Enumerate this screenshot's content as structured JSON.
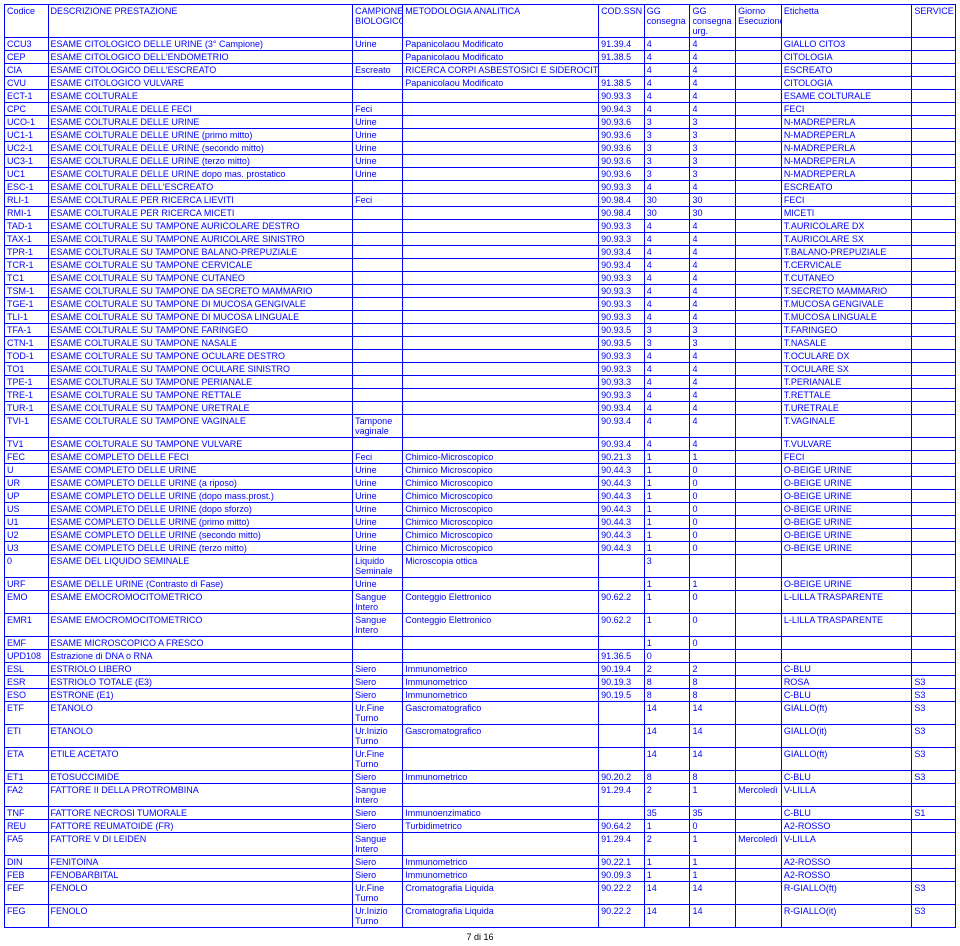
{
  "header": {
    "codice": "Codice",
    "descrizione": "DESCRIZIONE PRESTAZIONE",
    "campione": "CAMPIONE BIOLOGICO",
    "metodologia": "METODOLOGIA ANALITICA",
    "codssn": "COD.SSN",
    "gg_consegna": "GG consegna",
    "gg_consegna_urg": "GG consegna urg.",
    "giorno": "Giorno Esecuzione",
    "etichetta": "Etichetta",
    "service": "SERVICE"
  },
  "rows": [
    {
      "codice": "CCU3",
      "desc": "ESAME CITOLOGICO DELLE URINE (3° Campione)",
      "camp": "Urine",
      "metodo": "Papanicolaou Modificato",
      "cod": "91.39.4",
      "gg1": "4",
      "gg2": "4",
      "giorno": "",
      "etic": "GIALLO CITO3",
      "serv": ""
    },
    {
      "codice": "CEP",
      "desc": "ESAME CITOLOGICO DELL'ENDOMETRIO",
      "camp": "",
      "metodo": "Papanicolaou Modificato",
      "cod": "91.38.5",
      "gg1": "4",
      "gg2": "4",
      "giorno": "",
      "etic": "CITOLOGIA",
      "serv": ""
    },
    {
      "codice": "CIA",
      "desc": "ESAME CITOLOGICO DELL'ESCREATO",
      "camp": "Escreato",
      "metodo": "RICERCA CORPI ASBESTOSICI E SIDEROCITI",
      "cod": "",
      "gg1": "4",
      "gg2": "4",
      "giorno": "",
      "etic": "ESCREATO",
      "serv": ""
    },
    {
      "codice": "CVU",
      "desc": "ESAME CITOLOGICO VULVARE",
      "camp": "",
      "metodo": "Papanicolaou Modificato",
      "cod": "91.38.5",
      "gg1": "4",
      "gg2": "4",
      "giorno": "",
      "etic": "CITOLOGIA",
      "serv": ""
    },
    {
      "codice": "ECT-1",
      "desc": "ESAME COLTURALE",
      "camp": "",
      "metodo": "",
      "cod": "90.93.3",
      "gg1": "4",
      "gg2": "4",
      "giorno": "",
      "etic": "ESAME COLTURALE",
      "serv": ""
    },
    {
      "codice": "CPC",
      "desc": "ESAME COLTURALE DELLE FECI",
      "camp": "Feci",
      "metodo": "",
      "cod": "90.94.3",
      "gg1": "4",
      "gg2": "4",
      "giorno": "",
      "etic": "FECI",
      "serv": ""
    },
    {
      "codice": "UCO-1",
      "desc": "ESAME COLTURALE DELLE URINE",
      "camp": "Urine",
      "metodo": "",
      "cod": "90.93.6",
      "gg1": "3",
      "gg2": "3",
      "giorno": "",
      "etic": "N-MADREPERLA",
      "serv": ""
    },
    {
      "codice": "UC1-1",
      "desc": "ESAME COLTURALE DELLE URINE (primo mitto)",
      "camp": "Urine",
      "metodo": "",
      "cod": "90.93.6",
      "gg1": "3",
      "gg2": "3",
      "giorno": "",
      "etic": "N-MADREPERLA",
      "serv": ""
    },
    {
      "codice": "UC2-1",
      "desc": "ESAME COLTURALE DELLE URINE (secondo mitto)",
      "camp": "Urine",
      "metodo": "",
      "cod": "90.93.6",
      "gg1": "3",
      "gg2": "3",
      "giorno": "",
      "etic": "N-MADREPERLA",
      "serv": ""
    },
    {
      "codice": "UC3-1",
      "desc": "ESAME COLTURALE DELLE URINE (terzo mitto)",
      "camp": "Urine",
      "metodo": "",
      "cod": "90.93.6",
      "gg1": "3",
      "gg2": "3",
      "giorno": "",
      "etic": "N-MADREPERLA",
      "serv": ""
    },
    {
      "codice": "UC1",
      "desc": "ESAME COLTURALE DELLE URINE dopo mas. prostatico",
      "camp": "Urine",
      "metodo": "",
      "cod": "90.93.6",
      "gg1": "3",
      "gg2": "3",
      "giorno": "",
      "etic": "N-MADREPERLA",
      "serv": ""
    },
    {
      "codice": "ESC-1",
      "desc": "ESAME COLTURALE DELL'ESCREATO",
      "camp": "",
      "metodo": "",
      "cod": "90.93.3",
      "gg1": "4",
      "gg2": "4",
      "giorno": "",
      "etic": "ESCREATO",
      "serv": ""
    },
    {
      "codice": "RLI-1",
      "desc": "ESAME COLTURALE PER RICERCA LIEVITI",
      "camp": "Feci",
      "metodo": "",
      "cod": "90.98.4",
      "gg1": "30",
      "gg2": "30",
      "giorno": "",
      "etic": "FECI",
      "serv": ""
    },
    {
      "codice": "RMI-1",
      "desc": "ESAME COLTURALE PER RICERCA MICETI",
      "camp": "",
      "metodo": "",
      "cod": "90.98.4",
      "gg1": "30",
      "gg2": "30",
      "giorno": "",
      "etic": "MICETI",
      "serv": ""
    },
    {
      "codice": "TAD-1",
      "desc": "ESAME COLTURALE SU TAMPONE AURICOLARE DESTRO",
      "camp": "",
      "metodo": "",
      "cod": "90.93.3",
      "gg1": "4",
      "gg2": "4",
      "giorno": "",
      "etic": "T.AURICOLARE DX",
      "serv": ""
    },
    {
      "codice": "TAX-1",
      "desc": "ESAME COLTURALE SU TAMPONE AURICOLARE SINISTRO",
      "camp": "",
      "metodo": "",
      "cod": "90.93.3",
      "gg1": "4",
      "gg2": "4",
      "giorno": "",
      "etic": "T.AURICOLARE SX",
      "serv": ""
    },
    {
      "codice": "TPR-1",
      "desc": "ESAME COLTURALE SU TAMPONE BALANO-PREPUZIALE",
      "camp": "",
      "metodo": "",
      "cod": "90.93.4",
      "gg1": "4",
      "gg2": "4",
      "giorno": "",
      "etic": "T.BALANO-PREPUZIALE",
      "serv": ""
    },
    {
      "codice": "TCR-1",
      "desc": "ESAME COLTURALE SU TAMPONE CERVICALE",
      "camp": "",
      "metodo": "",
      "cod": "90.93.4",
      "gg1": "4",
      "gg2": "4",
      "giorno": "",
      "etic": "T.CERVICALE",
      "serv": ""
    },
    {
      "codice": "TC1",
      "desc": "ESAME COLTURALE SU TAMPONE CUTANEO",
      "camp": "",
      "metodo": "",
      "cod": "90.93.3",
      "gg1": "4",
      "gg2": "4",
      "giorno": "",
      "etic": "T.CUTANEO",
      "serv": ""
    },
    {
      "codice": "TSM-1",
      "desc": "ESAME COLTURALE SU TAMPONE DA SECRETO MAMMARIO",
      "camp": "",
      "metodo": "",
      "cod": "90.93.3",
      "gg1": "4",
      "gg2": "4",
      "giorno": "",
      "etic": "T.SECRETO MAMMARIO",
      "serv": ""
    },
    {
      "codice": "TGE-1",
      "desc": "ESAME COLTURALE SU TAMPONE DI MUCOSA GENGIVALE",
      "camp": "",
      "metodo": "",
      "cod": "90.93.3",
      "gg1": "4",
      "gg2": "4",
      "giorno": "",
      "etic": "T.MUCOSA GENGIVALE",
      "serv": ""
    },
    {
      "codice": "TLI-1",
      "desc": "ESAME COLTURALE SU TAMPONE DI MUCOSA LINGUALE",
      "camp": "",
      "metodo": "",
      "cod": "90.93.3",
      "gg1": "4",
      "gg2": "4",
      "giorno": "",
      "etic": "T.MUCOSA LINGUALE",
      "serv": ""
    },
    {
      "codice": "TFA-1",
      "desc": "ESAME COLTURALE SU TAMPONE FARINGEO",
      "camp": "",
      "metodo": "",
      "cod": "90.93.5",
      "gg1": "3",
      "gg2": "3",
      "giorno": "",
      "etic": "T.FARINGEO",
      "serv": ""
    },
    {
      "codice": "CTN-1",
      "desc": "ESAME COLTURALE SU TAMPONE NASALE",
      "camp": "",
      "metodo": "",
      "cod": "90.93.5",
      "gg1": "3",
      "gg2": "3",
      "giorno": "",
      "etic": "T.NASALE",
      "serv": ""
    },
    {
      "codice": "TOD-1",
      "desc": "ESAME COLTURALE SU TAMPONE OCULARE DESTRO",
      "camp": "",
      "metodo": "",
      "cod": "90.93.3",
      "gg1": "4",
      "gg2": "4",
      "giorno": "",
      "etic": "T.OCULARE DX",
      "serv": ""
    },
    {
      "codice": "TO1",
      "desc": "ESAME COLTURALE SU TAMPONE OCULARE SINISTRO",
      "camp": "",
      "metodo": "",
      "cod": "90.93.3",
      "gg1": "4",
      "gg2": "4",
      "giorno": "",
      "etic": "T.OCULARE SX",
      "serv": ""
    },
    {
      "codice": "TPE-1",
      "desc": "ESAME COLTURALE SU TAMPONE PERIANALE",
      "camp": "",
      "metodo": "",
      "cod": "90.93.3",
      "gg1": "4",
      "gg2": "4",
      "giorno": "",
      "etic": "T.PERIANALE",
      "serv": ""
    },
    {
      "codice": "TRE-1",
      "desc": "ESAME COLTURALE SU TAMPONE RETTALE",
      "camp": "",
      "metodo": "",
      "cod": "90.93.3",
      "gg1": "4",
      "gg2": "4",
      "giorno": "",
      "etic": "T.RETTALE",
      "serv": ""
    },
    {
      "codice": "TUR-1",
      "desc": "ESAME COLTURALE SU TAMPONE URETRALE",
      "camp": "",
      "metodo": "",
      "cod": "90.93.4",
      "gg1": "4",
      "gg2": "4",
      "giorno": "",
      "etic": "T.URETRALE",
      "serv": ""
    },
    {
      "codice": "TVI-1",
      "desc": "ESAME COLTURALE SU TAMPONE VAGINALE",
      "camp": "Tampone vaginale",
      "metodo": "",
      "cod": "90.93.4",
      "gg1": "4",
      "gg2": "4",
      "giorno": "",
      "etic": "T.VAGINALE",
      "serv": ""
    },
    {
      "codice": "TV1",
      "desc": "ESAME COLTURALE SU TAMPONE VULVARE",
      "camp": "",
      "metodo": "",
      "cod": "90.93.4",
      "gg1": "4",
      "gg2": "4",
      "giorno": "",
      "etic": "T.VULVARE",
      "serv": ""
    },
    {
      "codice": "FEC",
      "desc": "ESAME COMPLETO DELLE FECI",
      "camp": "Feci",
      "metodo": "Chimico-Microscopico",
      "cod": "90.21.3",
      "gg1": "1",
      "gg2": "1",
      "giorno": "",
      "etic": "FECI",
      "serv": ""
    },
    {
      "codice": "U",
      "desc": "ESAME COMPLETO DELLE URINE",
      "camp": "Urine",
      "metodo": "Chimico Microscopico",
      "cod": "90.44.3",
      "gg1": "1",
      "gg2": "0",
      "giorno": "",
      "etic": "O-BEIGE URINE",
      "serv": ""
    },
    {
      "codice": "UR",
      "desc": "ESAME COMPLETO DELLE URINE (a riposo)",
      "camp": "Urine",
      "metodo": "Chimico Microscopico",
      "cod": "90.44.3",
      "gg1": "1",
      "gg2": "0",
      "giorno": "",
      "etic": "O-BEIGE URINE",
      "serv": ""
    },
    {
      "codice": "UP",
      "desc": "ESAME COMPLETO DELLE URINE (dopo mass.prost.)",
      "camp": "Urine",
      "metodo": "Chimico Microscopico",
      "cod": "90.44.3",
      "gg1": "1",
      "gg2": "0",
      "giorno": "",
      "etic": "O-BEIGE URINE",
      "serv": ""
    },
    {
      "codice": "US",
      "desc": "ESAME COMPLETO DELLE URINE (dopo sforzo)",
      "camp": "Urine",
      "metodo": "Chimico Microscopico",
      "cod": "90.44.3",
      "gg1": "1",
      "gg2": "0",
      "giorno": "",
      "etic": "O-BEIGE URINE",
      "serv": ""
    },
    {
      "codice": "U1",
      "desc": "ESAME COMPLETO DELLE URINE (primo mitto)",
      "camp": "Urine",
      "metodo": "Chimico Microscopico",
      "cod": "90.44.3",
      "gg1": "1",
      "gg2": "0",
      "giorno": "",
      "etic": "O-BEIGE URINE",
      "serv": ""
    },
    {
      "codice": "U2",
      "desc": "ESAME COMPLETO DELLE URINE (secondo mitto)",
      "camp": "Urine",
      "metodo": "Chimico Microscopico",
      "cod": "90.44.3",
      "gg1": "1",
      "gg2": "0",
      "giorno": "",
      "etic": "O-BEIGE URINE",
      "serv": ""
    },
    {
      "codice": "U3",
      "desc": "ESAME COMPLETO DELLE URINE (terzo mitto)",
      "camp": "Urine",
      "metodo": "Chimico Microscopico",
      "cod": "90.44.3",
      "gg1": "1",
      "gg2": "0",
      "giorno": "",
      "etic": "O-BEIGE URINE",
      "serv": ""
    },
    {
      "codice": "0",
      "desc": "ESAME DEL LIQUIDO SEMINALE",
      "camp": "Liquido Seminale",
      "metodo": "Microscopia ottica",
      "cod": "",
      "gg1": "3",
      "gg2": "",
      "giorno": "",
      "etic": "",
      "serv": ""
    },
    {
      "codice": "URF",
      "desc": "ESAME DELLE URINE (Contrasto di Fase)",
      "camp": "Urine",
      "metodo": "",
      "cod": "",
      "gg1": "1",
      "gg2": "1",
      "giorno": "",
      "etic": "O-BEIGE URINE",
      "serv": ""
    },
    {
      "codice": "EMO",
      "desc": "ESAME EMOCROMOCITOMETRICO",
      "camp": "Sangue Intero",
      "metodo": "Conteggio Elettronico",
      "cod": "90.62.2",
      "gg1": "1",
      "gg2": "0",
      "giorno": "",
      "etic": "L-LILLA TRASPARENTE",
      "serv": ""
    },
    {
      "codice": "EMR1",
      "desc": "ESAME EMOCROMOCITOMETRICO",
      "camp": "Sangue Intero",
      "metodo": "Conteggio Elettronico",
      "cod": "90.62.2",
      "gg1": "1",
      "gg2": "0",
      "giorno": "",
      "etic": "L-LILLA TRASPARENTE",
      "serv": ""
    },
    {
      "codice": "EMF",
      "desc": "ESAME MICROSCOPICO A FRESCO",
      "camp": "",
      "metodo": "",
      "cod": "",
      "gg1": "1",
      "gg2": "0",
      "giorno": "",
      "etic": "",
      "serv": ""
    },
    {
      "codice": "UPD108",
      "desc": "Estrazione di DNA o RNA",
      "camp": "",
      "metodo": "",
      "cod": "91.36.5",
      "gg1": "0",
      "gg2": "",
      "giorno": "",
      "etic": "",
      "serv": ""
    },
    {
      "codice": "ESL",
      "desc": "ESTRIOLO LIBERO",
      "camp": "Siero",
      "metodo": "Immunometrico",
      "cod": "90.19.4",
      "gg1": "2",
      "gg2": "2",
      "giorno": "",
      "etic": "C-BLU",
      "serv": ""
    },
    {
      "codice": "ESR",
      "desc": "ESTRIOLO TOTALE (E3)",
      "camp": "Siero",
      "metodo": "Immunometrico",
      "cod": "90.19.3",
      "gg1": "8",
      "gg2": "8",
      "giorno": "",
      "etic": "ROSA",
      "serv": "S3"
    },
    {
      "codice": "ESO",
      "desc": "ESTRONE (E1)",
      "camp": "Siero",
      "metodo": "Immunometrico",
      "cod": "90.19.5",
      "gg1": "8",
      "gg2": "8",
      "giorno": "",
      "etic": "C-BLU",
      "serv": "S3"
    },
    {
      "codice": "ETF",
      "desc": "ETANOLO",
      "camp": "Ur.Fine Turno",
      "metodo": "Gascromatografico",
      "cod": "",
      "gg1": "14",
      "gg2": "14",
      "giorno": "",
      "etic": "GIALLO(ft)",
      "serv": "S3"
    },
    {
      "codice": "ETI",
      "desc": "ETANOLO",
      "camp": "Ur.Inizio Turno",
      "metodo": "Gascromatografico",
      "cod": "",
      "gg1": "14",
      "gg2": "14",
      "giorno": "",
      "etic": "GIALLO(it)",
      "serv": "S3"
    },
    {
      "codice": "ETA",
      "desc": "ETILE ACETATO",
      "camp": "Ur.Fine Turno",
      "metodo": "",
      "cod": "",
      "gg1": "14",
      "gg2": "14",
      "giorno": "",
      "etic": "GIALLO(ft)",
      "serv": "S3"
    },
    {
      "codice": "ET1",
      "desc": "ETOSUCCIMIDE",
      "camp": "Siero",
      "metodo": "Immunometrico",
      "cod": "90.20.2",
      "gg1": "8",
      "gg2": "8",
      "giorno": "",
      "etic": "C-BLU",
      "serv": "S3"
    },
    {
      "codice": "FA2",
      "desc": "FATTORE II DELLA PROTROMBINA",
      "camp": "Sangue Intero",
      "metodo": "",
      "cod": "91.29.4",
      "gg1": "2",
      "gg2": "1",
      "giorno": "Mercoledì",
      "etic": "V-LILLA",
      "serv": ""
    },
    {
      "codice": "TNF",
      "desc": "FATTORE NECROSI TUMORALE",
      "camp": "Siero",
      "metodo": "Immunoenzimatico",
      "cod": "",
      "gg1": "35",
      "gg2": "35",
      "giorno": "",
      "etic": "C-BLU",
      "serv": "S1"
    },
    {
      "codice": "REU",
      "desc": "FATTORE REUMATOIDE (FR)",
      "camp": "Siero",
      "metodo": "Turbidimetrico",
      "cod": "90.64.2",
      "gg1": "1",
      "gg2": "0",
      "giorno": "",
      "etic": "A2-ROSSO",
      "serv": ""
    },
    {
      "codice": "FA5",
      "desc": "FATTORE V DI LEIDEN",
      "camp": "Sangue Intero",
      "metodo": "",
      "cod": "91.29.4",
      "gg1": "2",
      "gg2": "1",
      "giorno": "Mercoledì",
      "etic": "V-LILLA",
      "serv": ""
    },
    {
      "codice": "DIN",
      "desc": "FENITOINA",
      "camp": "Siero",
      "metodo": "Immunometrico",
      "cod": "90.22.1",
      "gg1": "1",
      "gg2": "1",
      "giorno": "",
      "etic": "A2-ROSSO",
      "serv": ""
    },
    {
      "codice": "FEB",
      "desc": "FENOBARBITAL",
      "camp": "Siero",
      "metodo": "Immunometrico",
      "cod": "90.09.3",
      "gg1": "1",
      "gg2": "1",
      "giorno": "",
      "etic": "A2-ROSSO",
      "serv": ""
    },
    {
      "codice": "FEF",
      "desc": "FENOLO",
      "camp": "Ur.Fine Turno",
      "metodo": "Cromatografia Liquida",
      "cod": "90.22.2",
      "gg1": "14",
      "gg2": "14",
      "giorno": "",
      "etic": "R-GIALLO(ft)",
      "serv": "S3"
    },
    {
      "codice": "FEG",
      "desc": "FENOLO",
      "camp": "Ur.Inizio Turno",
      "metodo": "Cromatografia Liquida",
      "cod": "90.22.2",
      "gg1": "14",
      "gg2": "14",
      "giorno": "",
      "etic": "R-GIALLO(it)",
      "serv": "S3"
    }
  ],
  "footer": "7 di 16",
  "colors": {
    "text": "#0000ff",
    "border": "#0000ff",
    "background": "#ffffff"
  }
}
